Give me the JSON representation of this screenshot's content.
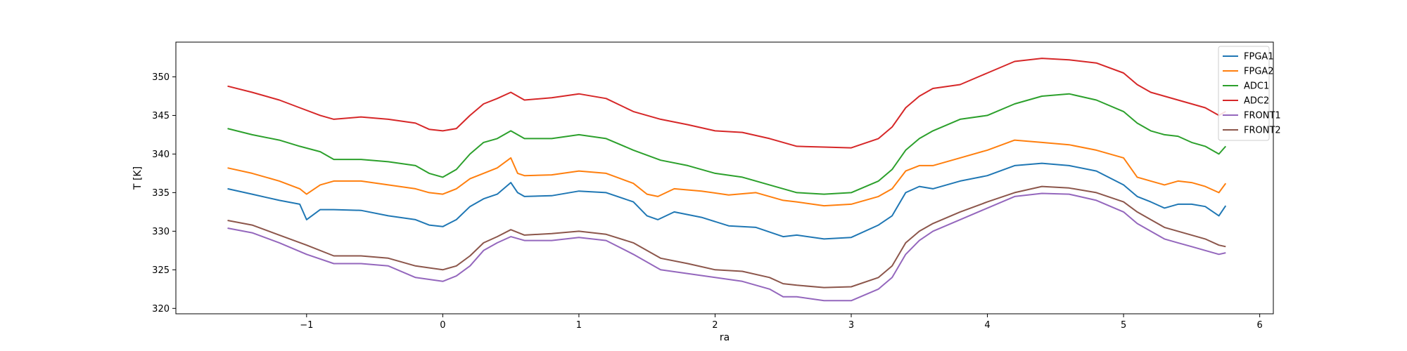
{
  "chart_data": {
    "type": "line",
    "title": "",
    "xlabel": "ra",
    "ylabel": "T [K]",
    "xlim": [
      -1.96,
      6.1
    ],
    "ylim": [
      319.3,
      354.5
    ],
    "xticks": [
      -1,
      0,
      1,
      2,
      3,
      4,
      5,
      6
    ],
    "xtick_labels": [
      "−1",
      "0",
      "1",
      "2",
      "3",
      "4",
      "5",
      "6"
    ],
    "yticks": [
      320,
      325,
      330,
      335,
      340,
      345,
      350
    ],
    "ytick_labels": [
      "320",
      "325",
      "330",
      "335",
      "340",
      "345",
      "350"
    ],
    "grid": false,
    "legend_position": "top-right",
    "series": [
      {
        "name": "FPGA1",
        "color": "#1f77b4",
        "x": [
          -1.58,
          -1.4,
          -1.2,
          -1.05,
          -1.0,
          -0.9,
          -0.8,
          -0.6,
          -0.4,
          -0.2,
          -0.1,
          0.0,
          0.1,
          0.2,
          0.3,
          0.4,
          0.5,
          0.55,
          0.6,
          0.8,
          1.0,
          1.2,
          1.4,
          1.5,
          1.58,
          1.7,
          1.9,
          2.1,
          2.3,
          2.5,
          2.6,
          2.8,
          3.0,
          3.2,
          3.3,
          3.4,
          3.5,
          3.6,
          3.8,
          4.0,
          4.2,
          4.4,
          4.6,
          4.8,
          5.0,
          5.1,
          5.2,
          5.3,
          5.4,
          5.5,
          5.6,
          5.7,
          5.75
        ],
        "y": [
          335.5,
          334.8,
          334.0,
          333.5,
          331.5,
          332.8,
          332.8,
          332.7,
          332.0,
          331.5,
          330.8,
          330.6,
          331.5,
          333.2,
          334.2,
          334.8,
          336.3,
          335.0,
          334.5,
          334.6,
          335.2,
          335.0,
          333.8,
          332.0,
          331.5,
          332.5,
          331.8,
          330.7,
          330.5,
          329.3,
          329.5,
          329.0,
          329.2,
          330.8,
          332.0,
          335.0,
          335.8,
          335.5,
          336.5,
          337.2,
          338.5,
          338.8,
          338.5,
          337.8,
          336.0,
          334.5,
          333.8,
          333.0,
          333.5,
          333.5,
          333.2,
          332.0,
          333.3
        ]
      },
      {
        "name": "FPGA2",
        "color": "#ff7f0e",
        "x": [
          -1.58,
          -1.4,
          -1.2,
          -1.05,
          -1.0,
          -0.9,
          -0.8,
          -0.6,
          -0.4,
          -0.2,
          -0.1,
          0.0,
          0.1,
          0.2,
          0.3,
          0.4,
          0.5,
          0.55,
          0.6,
          0.8,
          1.0,
          1.2,
          1.4,
          1.5,
          1.58,
          1.7,
          1.9,
          2.1,
          2.3,
          2.5,
          2.6,
          2.8,
          3.0,
          3.2,
          3.3,
          3.4,
          3.5,
          3.6,
          3.8,
          4.0,
          4.2,
          4.4,
          4.6,
          4.8,
          5.0,
          5.1,
          5.2,
          5.3,
          5.4,
          5.5,
          5.6,
          5.7,
          5.75
        ],
        "y": [
          338.2,
          337.5,
          336.5,
          335.5,
          334.8,
          336.0,
          336.5,
          336.5,
          336.0,
          335.5,
          335.0,
          334.8,
          335.5,
          336.8,
          337.5,
          338.2,
          339.5,
          337.5,
          337.2,
          337.3,
          337.8,
          337.5,
          336.2,
          334.8,
          334.5,
          335.5,
          335.2,
          334.7,
          335.0,
          334.0,
          333.8,
          333.3,
          333.5,
          334.5,
          335.5,
          337.8,
          338.5,
          338.5,
          339.5,
          340.5,
          341.8,
          341.5,
          341.2,
          340.5,
          339.5,
          337.0,
          336.5,
          336.0,
          336.5,
          336.3,
          335.8,
          335.0,
          336.2
        ]
      },
      {
        "name": "ADC1",
        "color": "#2ca02c",
        "x": [
          -1.58,
          -1.4,
          -1.2,
          -1.05,
          -0.9,
          -0.8,
          -0.6,
          -0.4,
          -0.2,
          -0.1,
          0.0,
          0.1,
          0.2,
          0.3,
          0.4,
          0.5,
          0.6,
          0.8,
          1.0,
          1.2,
          1.4,
          1.6,
          1.8,
          2.0,
          2.2,
          2.4,
          2.6,
          2.8,
          3.0,
          3.2,
          3.3,
          3.4,
          3.5,
          3.6,
          3.8,
          4.0,
          4.2,
          4.4,
          4.6,
          4.8,
          5.0,
          5.1,
          5.2,
          5.3,
          5.4,
          5.5,
          5.6,
          5.7,
          5.75
        ],
        "y": [
          343.3,
          342.5,
          341.8,
          341.0,
          340.3,
          339.3,
          339.3,
          339.0,
          338.5,
          337.5,
          337.0,
          338.0,
          340.0,
          341.5,
          342.0,
          343.0,
          342.0,
          342.0,
          342.5,
          342.0,
          340.5,
          339.2,
          338.5,
          337.5,
          337.0,
          336.0,
          335.0,
          334.8,
          335.0,
          336.5,
          338.0,
          340.5,
          342.0,
          343.0,
          344.5,
          345.0,
          346.5,
          347.5,
          347.8,
          347.0,
          345.5,
          344.0,
          343.0,
          342.5,
          342.3,
          341.5,
          341.0,
          340.0,
          341.0
        ]
      },
      {
        "name": "ADC2",
        "color": "#d62728",
        "x": [
          -1.58,
          -1.4,
          -1.2,
          -1.05,
          -0.9,
          -0.8,
          -0.6,
          -0.4,
          -0.2,
          -0.1,
          0.0,
          0.1,
          0.2,
          0.3,
          0.4,
          0.5,
          0.6,
          0.8,
          1.0,
          1.2,
          1.4,
          1.6,
          1.8,
          2.0,
          2.2,
          2.4,
          2.6,
          2.8,
          3.0,
          3.2,
          3.3,
          3.4,
          3.5,
          3.6,
          3.8,
          4.0,
          4.2,
          4.4,
          4.6,
          4.8,
          5.0,
          5.1,
          5.2,
          5.3,
          5.4,
          5.5,
          5.6,
          5.7,
          5.75
        ],
        "y": [
          348.8,
          348.0,
          347.0,
          346.0,
          345.0,
          344.5,
          344.8,
          344.5,
          344.0,
          343.2,
          343.0,
          343.3,
          345.0,
          346.5,
          347.2,
          348.0,
          347.0,
          347.3,
          347.8,
          347.2,
          345.5,
          344.5,
          343.8,
          343.0,
          342.8,
          342.0,
          341.0,
          340.9,
          340.8,
          342.0,
          343.5,
          346.0,
          347.5,
          348.5,
          349.0,
          350.5,
          352.0,
          352.4,
          352.2,
          351.8,
          350.5,
          349.0,
          348.0,
          347.5,
          347.0,
          346.5,
          346.0,
          345.0,
          345.5
        ]
      },
      {
        "name": "FRONT1",
        "color": "#9467bd",
        "x": [
          -1.58,
          -1.4,
          -1.2,
          -1.0,
          -0.8,
          -0.6,
          -0.4,
          -0.2,
          0.0,
          0.1,
          0.2,
          0.3,
          0.4,
          0.5,
          0.6,
          0.8,
          1.0,
          1.2,
          1.4,
          1.6,
          1.8,
          2.0,
          2.2,
          2.4,
          2.5,
          2.6,
          2.8,
          3.0,
          3.2,
          3.3,
          3.4,
          3.5,
          3.6,
          3.8,
          4.0,
          4.2,
          4.4,
          4.6,
          4.8,
          5.0,
          5.1,
          5.2,
          5.3,
          5.4,
          5.5,
          5.6,
          5.7,
          5.75
        ],
        "y": [
          330.4,
          329.8,
          328.5,
          327.0,
          325.8,
          325.8,
          325.5,
          324.0,
          323.5,
          324.2,
          325.5,
          327.5,
          328.5,
          329.3,
          328.8,
          328.8,
          329.2,
          328.8,
          327.0,
          325.0,
          324.5,
          324.0,
          323.5,
          322.5,
          321.5,
          321.5,
          321.0,
          321.0,
          322.5,
          324.0,
          327.0,
          328.8,
          330.0,
          331.5,
          333.0,
          334.5,
          334.9,
          334.8,
          334.0,
          332.5,
          331.0,
          330.0,
          329.0,
          328.5,
          328.0,
          327.5,
          327.0,
          327.2
        ]
      },
      {
        "name": "FRONT2",
        "color": "#8c564b",
        "x": [
          -1.58,
          -1.4,
          -1.2,
          -1.0,
          -0.8,
          -0.6,
          -0.4,
          -0.2,
          0.0,
          0.1,
          0.2,
          0.3,
          0.4,
          0.5,
          0.6,
          0.8,
          1.0,
          1.2,
          1.4,
          1.6,
          1.8,
          2.0,
          2.2,
          2.4,
          2.5,
          2.6,
          2.8,
          3.0,
          3.2,
          3.3,
          3.4,
          3.5,
          3.6,
          3.8,
          4.0,
          4.2,
          4.4,
          4.6,
          4.8,
          5.0,
          5.1,
          5.2,
          5.3,
          5.4,
          5.5,
          5.6,
          5.7,
          5.75
        ],
        "y": [
          331.4,
          330.8,
          329.5,
          328.2,
          326.8,
          326.8,
          326.5,
          325.5,
          325.0,
          325.5,
          326.8,
          328.5,
          329.3,
          330.2,
          329.5,
          329.7,
          330.0,
          329.6,
          328.5,
          326.5,
          325.8,
          325.0,
          324.8,
          324.0,
          323.2,
          323.0,
          322.7,
          322.8,
          324.0,
          325.5,
          328.5,
          330.0,
          331.0,
          332.5,
          333.8,
          335.0,
          335.8,
          335.6,
          335.0,
          333.8,
          332.5,
          331.5,
          330.5,
          330.0,
          329.5,
          329.0,
          328.2,
          328.0
        ]
      }
    ]
  }
}
